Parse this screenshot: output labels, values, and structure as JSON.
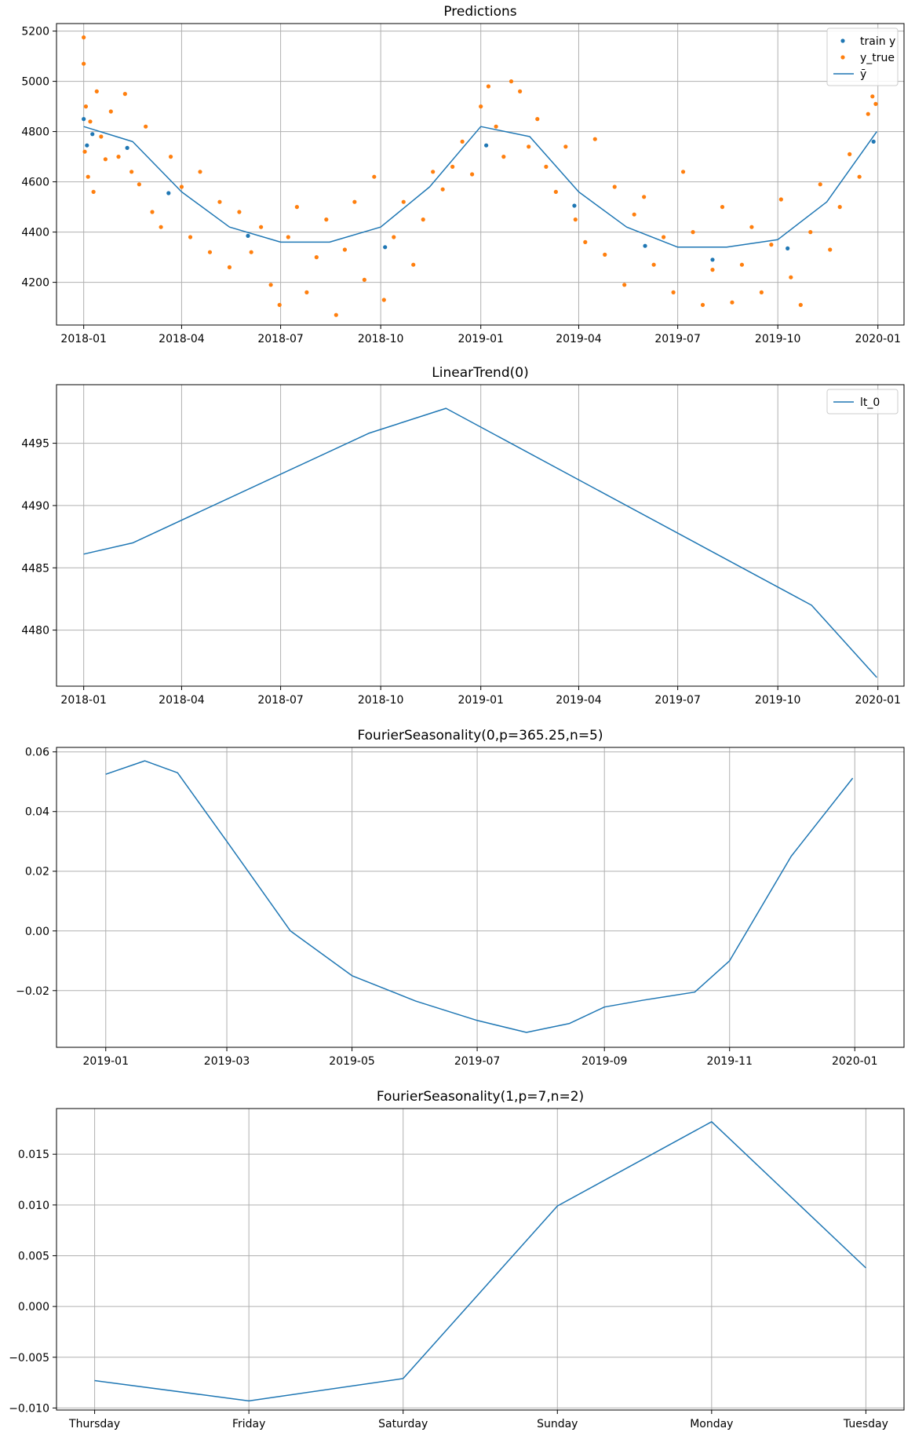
{
  "colors": {
    "blue": "#1f77b4",
    "orange": "#ff7f0e",
    "grid": "#b0b0b0",
    "axis": "#000000"
  },
  "chart_data": [
    {
      "type": "scatter+line",
      "title": "Predictions",
      "x_axis": "date",
      "xlim": [
        "2017-12-07",
        "2020-01-25"
      ],
      "ylim": [
        4030,
        5230
      ],
      "xticks": [
        "2018-01",
        "2018-04",
        "2018-07",
        "2018-10",
        "2019-01",
        "2019-04",
        "2019-07",
        "2019-10",
        "2020-01"
      ],
      "yticks": [
        4200,
        4400,
        4600,
        4800,
        5000,
        5200
      ],
      "grid": true,
      "legend": {
        "placement": "top-right",
        "entries": [
          "train y",
          "y_true",
          "ȳ"
        ]
      },
      "series": [
        {
          "name": "train y",
          "kind": "scatter",
          "color": "#1f77b4",
          "x": [
            "2018-01-01",
            "2018-01-04",
            "2018-01-09",
            "2018-02-10",
            "2018-03-20",
            "2018-06-01",
            "2018-10-05",
            "2019-01-06",
            "2019-03-28",
            "2019-06-01",
            "2019-08-02",
            "2019-10-10",
            "2019-12-28"
          ],
          "y": [
            4850,
            4745,
            4790,
            4735,
            4555,
            4385,
            4340,
            4745,
            4505,
            4345,
            4290,
            4335,
            4760
          ]
        },
        {
          "name": "y_true",
          "kind": "scatter",
          "color": "#ff7f0e",
          "x": [
            "2018-01-01",
            "2018-01-01",
            "2018-01-02",
            "2018-01-03",
            "2018-01-05",
            "2018-01-07",
            "2018-01-10",
            "2018-01-13",
            "2018-01-17",
            "2018-01-21",
            "2018-01-26",
            "2018-02-02",
            "2018-02-08",
            "2018-02-14",
            "2018-02-21",
            "2018-02-27",
            "2018-03-05",
            "2018-03-13",
            "2018-03-22",
            "2018-04-01",
            "2018-04-09",
            "2018-04-18",
            "2018-04-27",
            "2018-05-06",
            "2018-05-15",
            "2018-05-24",
            "2018-06-04",
            "2018-06-13",
            "2018-06-22",
            "2018-06-30",
            "2018-07-08",
            "2018-07-16",
            "2018-07-25",
            "2018-08-03",
            "2018-08-12",
            "2018-08-21",
            "2018-08-29",
            "2018-09-07",
            "2018-09-16",
            "2018-09-25",
            "2018-10-04",
            "2018-10-13",
            "2018-10-22",
            "2018-10-31",
            "2018-11-09",
            "2018-11-18",
            "2018-11-27",
            "2018-12-06",
            "2018-12-15",
            "2018-12-24",
            "2019-01-01",
            "2019-01-08",
            "2019-01-15",
            "2019-01-22",
            "2019-01-29",
            "2019-02-06",
            "2019-02-14",
            "2019-02-22",
            "2019-03-02",
            "2019-03-11",
            "2019-03-20",
            "2019-03-29",
            "2019-04-07",
            "2019-04-16",
            "2019-04-25",
            "2019-05-04",
            "2019-05-13",
            "2019-05-22",
            "2019-05-31",
            "2019-06-09",
            "2019-06-18",
            "2019-06-27",
            "2019-07-06",
            "2019-07-15",
            "2019-07-24",
            "2019-08-02",
            "2019-08-11",
            "2019-08-20",
            "2019-08-29",
            "2019-09-07",
            "2019-09-16",
            "2019-09-25",
            "2019-10-04",
            "2019-10-13",
            "2019-10-22",
            "2019-10-31",
            "2019-11-09",
            "2019-11-18",
            "2019-11-27",
            "2019-12-06",
            "2019-12-15",
            "2019-12-23",
            "2019-12-27",
            "2019-12-30"
          ],
          "y": [
            5175,
            5070,
            4720,
            4900,
            4620,
            4840,
            4560,
            4960,
            4780,
            4690,
            4880,
            4700,
            4950,
            4640,
            4590,
            4820,
            4480,
            4420,
            4700,
            4580,
            4380,
            4640,
            4320,
            4520,
            4260,
            4480,
            4320,
            4420,
            4190,
            4110,
            4380,
            4500,
            4160,
            4300,
            4450,
            4070,
            4330,
            4520,
            4210,
            4620,
            4130,
            4380,
            4520,
            4270,
            4450,
            4640,
            4570,
            4660,
            4760,
            4630,
            4900,
            4980,
            4820,
            4700,
            5000,
            4960,
            4740,
            4850,
            4660,
            4560,
            4740,
            4450,
            4360,
            4770,
            4310,
            4580,
            4190,
            4470,
            4540,
            4270,
            4380,
            4160,
            4640,
            4400,
            4110,
            4250,
            4500,
            4120,
            4270,
            4420,
            4160,
            4350,
            4530,
            4220,
            4110,
            4400,
            4590,
            4330,
            4500,
            4710,
            4620,
            4870,
            4940,
            4910
          ]
        },
        {
          "name": "ȳ",
          "kind": "line",
          "color": "#1f77b4",
          "x": [
            "2018-01-01",
            "2018-02-15",
            "2018-04-01",
            "2018-05-15",
            "2018-07-01",
            "2018-08-15",
            "2018-10-01",
            "2018-11-15",
            "2019-01-01",
            "2019-02-15",
            "2019-04-01",
            "2019-05-15",
            "2019-07-01",
            "2019-08-15",
            "2019-10-01",
            "2019-11-15",
            "2019-12-31"
          ],
          "y": [
            4820,
            4760,
            4560,
            4420,
            4360,
            4360,
            4420,
            4580,
            4820,
            4780,
            4560,
            4420,
            4340,
            4340,
            4370,
            4520,
            4800
          ]
        }
      ]
    },
    {
      "type": "line",
      "title": "LinearTrend(0)",
      "x_axis": "date",
      "xlim": [
        "2017-12-07",
        "2020-01-25"
      ],
      "ylim": [
        4475.5,
        4499.7
      ],
      "xticks": [
        "2018-01",
        "2018-04",
        "2018-07",
        "2018-10",
        "2019-01",
        "2019-04",
        "2019-07",
        "2019-10",
        "2020-01"
      ],
      "yticks": [
        4480,
        4485,
        4490,
        4495
      ],
      "grid": true,
      "legend": {
        "placement": "top-right",
        "entries": [
          "lt_0"
        ]
      },
      "series": [
        {
          "name": "lt_0",
          "color": "#1f77b4",
          "x": [
            "2018-01-01",
            "2018-02-15",
            "2018-09-20",
            "2018-11-30",
            "2019-11-01",
            "2019-12-31"
          ],
          "y": [
            4486.1,
            4487.0,
            4495.8,
            4497.8,
            4482.0,
            4476.2
          ]
        }
      ]
    },
    {
      "type": "line",
      "title": "FourierSeasonality(0,p=365.25,n=5)",
      "x_axis": "date",
      "xlim": [
        "2018-12-08",
        "2020-01-25"
      ],
      "ylim": [
        -0.039,
        0.0615
      ],
      "xticks": [
        "2019-01",
        "2019-03",
        "2019-05",
        "2019-07",
        "2019-09",
        "2019-11",
        "2020-01"
      ],
      "yticks": [
        -0.02,
        0.0,
        0.02,
        0.04,
        0.06
      ],
      "grid": true,
      "series": [
        {
          "color": "#1f77b4",
          "x": [
            "2019-01-01",
            "2019-01-20",
            "2019-02-05",
            "2019-03-01",
            "2019-04-01",
            "2019-05-01",
            "2019-06-01",
            "2019-07-01",
            "2019-07-25",
            "2019-08-15",
            "2019-09-01",
            "2019-09-20",
            "2019-10-15",
            "2019-11-01",
            "2019-12-01",
            "2019-12-31"
          ],
          "y": [
            0.0525,
            0.057,
            0.053,
            0.03,
            0.0,
            -0.015,
            -0.0235,
            -0.03,
            -0.034,
            -0.031,
            -0.0255,
            -0.0232,
            -0.0205,
            -0.01,
            0.025,
            0.0512
          ]
        }
      ]
    },
    {
      "type": "line",
      "title": "FourierSeasonality(1,p=7,n=2)",
      "x_axis": "category",
      "categories": [
        "Thursday",
        "Friday",
        "Saturday",
        "Sunday",
        "Monday",
        "Tuesday"
      ],
      "ylim": [
        -0.0102,
        0.0195
      ],
      "yticks": [
        -0.01,
        -0.005,
        0.0,
        0.005,
        0.01,
        0.015
      ],
      "grid": true,
      "series": [
        {
          "color": "#1f77b4",
          "values": [
            -0.0073,
            -0.0093,
            -0.0071,
            0.0099,
            0.0182,
            0.0038
          ]
        }
      ]
    }
  ]
}
